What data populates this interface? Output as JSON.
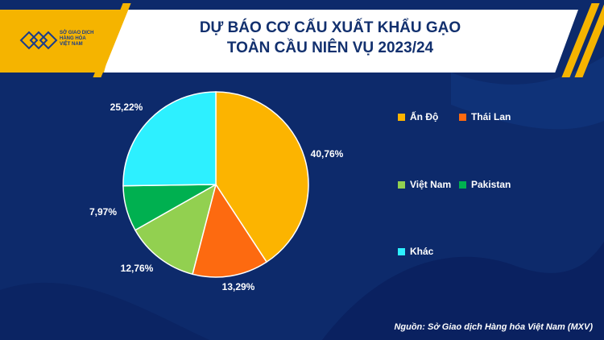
{
  "header": {
    "logo_lines": [
      "SỞ GIAO DỊCH",
      "HÀNG HÓA",
      "VIỆT NAM"
    ],
    "title_lines": [
      "DỰ BÁO CƠ CẤU XUẤT KHẨU GẠO",
      "TOÀN CẦU NIÊN VỤ 2023/24"
    ]
  },
  "chart_data": {
    "type": "pie",
    "title": "DỰ BÁO CƠ CẤU XUẤT KHẨU GẠO TOÀN CẦU NIÊN VỤ 2023/24",
    "categories": [
      "Ấn Độ",
      "Thái Lan",
      "Việt Nam",
      "Pakistan",
      "Khác"
    ],
    "values": [
      40.76,
      13.29,
      12.76,
      7.97,
      25.22
    ],
    "data_labels": [
      "40,76%",
      "13,29%",
      "12,76%",
      "7,97%",
      "25,22%"
    ],
    "colors": [
      "#fcb400",
      "#fd6a10",
      "#92d050",
      "#00b050",
      "#2df0ff"
    ],
    "legend_position": "right"
  },
  "source": "Nguồn: Sở Giao dịch Hàng hóa Việt Nam (MXV)"
}
